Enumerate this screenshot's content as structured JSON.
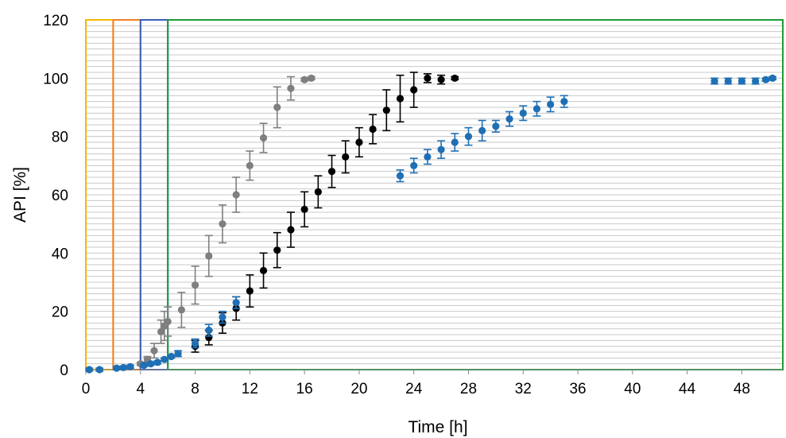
{
  "chart_data": {
    "type": "scatter",
    "xlabel": "Time [h]",
    "ylabel": "API [%]",
    "xlim": [
      0,
      51
    ],
    "ylim": [
      0,
      120
    ],
    "x_ticks": [
      0,
      4,
      8,
      12,
      16,
      20,
      24,
      28,
      32,
      36,
      40,
      44,
      48
    ],
    "y_ticks": [
      0,
      20,
      40,
      60,
      80,
      100,
      120
    ],
    "grid": "horizontal, every 2%",
    "phase_boxes": [
      {
        "x0": 0,
        "x1": 2,
        "color": "#f5b800"
      },
      {
        "x0": 2,
        "x1": 4,
        "color": "#f07f2a"
      },
      {
        "x0": 4,
        "x1": 6,
        "color": "#3b5fb5"
      },
      {
        "x0": 6,
        "x1": 51,
        "color": "#1f9a3a"
      }
    ],
    "series": [
      {
        "color": "#7f7f7f",
        "points": [
          {
            "x": 4,
            "y": 2,
            "err": 0.5
          },
          {
            "x": 4.5,
            "y": 3.5,
            "err": 1
          },
          {
            "x": 5,
            "y": 6.5,
            "err": 2.5
          },
          {
            "x": 5.5,
            "y": 13,
            "err": 4
          },
          {
            "x": 5.75,
            "y": 15,
            "err": 5
          },
          {
            "x": 6,
            "y": 16.5,
            "err": 5
          },
          {
            "x": 7,
            "y": 20.5,
            "err": 6
          },
          {
            "x": 8,
            "y": 29,
            "err": 6.5
          },
          {
            "x": 9,
            "y": 39,
            "err": 7
          },
          {
            "x": 10,
            "y": 50,
            "err": 6.5
          },
          {
            "x": 11,
            "y": 60,
            "err": 6
          },
          {
            "x": 12,
            "y": 70,
            "err": 5
          },
          {
            "x": 13,
            "y": 79.5,
            "err": 5
          },
          {
            "x": 14,
            "y": 90,
            "err": 7
          },
          {
            "x": 15,
            "y": 96.5,
            "err": 4
          },
          {
            "x": 16,
            "y": 99.5,
            "err": 0.5
          },
          {
            "x": 16.5,
            "y": 100,
            "err": 0.5
          }
        ]
      },
      {
        "color": "#000000",
        "points": [
          {
            "x": 8,
            "y": 8,
            "err": 2
          },
          {
            "x": 9,
            "y": 11,
            "err": 2.5
          },
          {
            "x": 10,
            "y": 16,
            "err": 3.5
          },
          {
            "x": 11,
            "y": 21,
            "err": 4
          },
          {
            "x": 12,
            "y": 27,
            "err": 5.5
          },
          {
            "x": 13,
            "y": 34,
            "err": 6
          },
          {
            "x": 14,
            "y": 41,
            "err": 6
          },
          {
            "x": 15,
            "y": 48,
            "err": 6
          },
          {
            "x": 16,
            "y": 55,
            "err": 6
          },
          {
            "x": 17,
            "y": 61,
            "err": 5.5
          },
          {
            "x": 18,
            "y": 68,
            "err": 5.5
          },
          {
            "x": 19,
            "y": 73,
            "err": 5.5
          },
          {
            "x": 20,
            "y": 78,
            "err": 5
          },
          {
            "x": 21,
            "y": 82.5,
            "err": 5
          },
          {
            "x": 22,
            "y": 89,
            "err": 7
          },
          {
            "x": 23,
            "y": 93,
            "err": 8
          },
          {
            "x": 24,
            "y": 96,
            "err": 6
          },
          {
            "x": 25,
            "y": 100,
            "err": 1.5
          },
          {
            "x": 26,
            "y": 99.5,
            "err": 1.5
          },
          {
            "x": 27,
            "y": 100,
            "err": 0.5
          }
        ]
      },
      {
        "color": "#1f6fb5",
        "points": [
          {
            "x": 0.25,
            "y": 0,
            "err": 0.5
          },
          {
            "x": 1,
            "y": 0,
            "err": 0.5
          },
          {
            "x": 2.25,
            "y": 0.5,
            "err": 0.5
          },
          {
            "x": 2.75,
            "y": 0.7,
            "err": 0.5
          },
          {
            "x": 3.25,
            "y": 1,
            "err": 0.5
          },
          {
            "x": 4.25,
            "y": 1.5,
            "err": 0.5
          },
          {
            "x": 4.75,
            "y": 2,
            "err": 0.5
          },
          {
            "x": 5.25,
            "y": 2.5,
            "err": 0.5
          },
          {
            "x": 5.75,
            "y": 3.5,
            "err": 0.5
          },
          {
            "x": 6.25,
            "y": 4.5,
            "err": 0.5
          },
          {
            "x": 6.75,
            "y": 5.5,
            "err": 1
          },
          {
            "x": 8,
            "y": 9,
            "err": 1.5
          },
          {
            "x": 9,
            "y": 13.5,
            "err": 2
          },
          {
            "x": 10,
            "y": 18,
            "err": 2
          },
          {
            "x": 11,
            "y": 23,
            "err": 2
          },
          {
            "x": 23,
            "y": 66.5,
            "err": 2
          },
          {
            "x": 24,
            "y": 70,
            "err": 2.5
          },
          {
            "x": 25,
            "y": 73,
            "err": 2.5
          },
          {
            "x": 26,
            "y": 75.5,
            "err": 3
          },
          {
            "x": 27,
            "y": 78,
            "err": 3
          },
          {
            "x": 28,
            "y": 80,
            "err": 3
          },
          {
            "x": 29,
            "y": 82,
            "err": 3.5
          },
          {
            "x": 30,
            "y": 83.5,
            "err": 2
          },
          {
            "x": 31,
            "y": 86,
            "err": 2.5
          },
          {
            "x": 32,
            "y": 88,
            "err": 2.5
          },
          {
            "x": 33,
            "y": 89.5,
            "err": 2.5
          },
          {
            "x": 34,
            "y": 91,
            "err": 2.5
          },
          {
            "x": 35,
            "y": 92,
            "err": 2
          },
          {
            "x": 46,
            "y": 99,
            "err": 1
          },
          {
            "x": 47,
            "y": 99,
            "err": 1
          },
          {
            "x": 48,
            "y": 99,
            "err": 1
          },
          {
            "x": 49,
            "y": 99,
            "err": 1
          },
          {
            "x": 49.75,
            "y": 99.5,
            "err": 0.5
          },
          {
            "x": 50.25,
            "y": 100,
            "err": 0.5
          }
        ]
      }
    ]
  }
}
